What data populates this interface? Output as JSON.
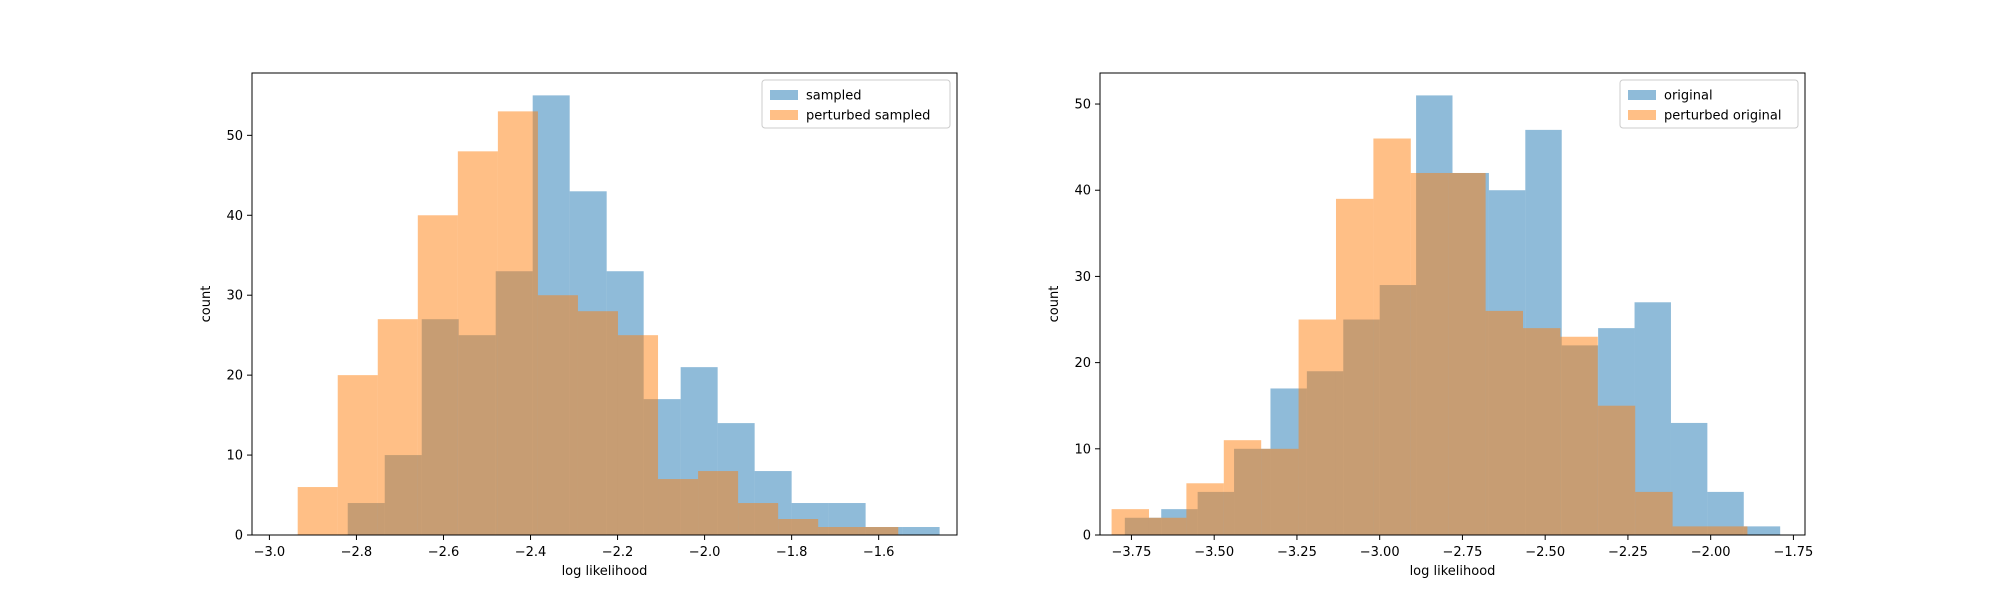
{
  "chart_data": [
    {
      "type": "bar",
      "title": "",
      "xlabel": "log likelihood",
      "ylabel": "count",
      "xlim": [
        -3.04,
        -1.42
      ],
      "ylim": [
        0,
        57.8
      ],
      "xticks": [
        -3.0,
        -2.8,
        -2.6,
        -2.4,
        -2.2,
        -2.0,
        -1.8,
        -1.6
      ],
      "xtick_labels": [
        "−3.0",
        "−2.8",
        "−2.6",
        "−2.4",
        "−2.2",
        "−2.0",
        "−1.8",
        "−1.6"
      ],
      "yticks": [
        0,
        10,
        20,
        30,
        40,
        50
      ],
      "ytick_labels": [
        "0",
        "10",
        "20",
        "30",
        "40",
        "50"
      ],
      "grid": false,
      "legend_position": "top-right",
      "series": [
        {
          "name": "sampled",
          "color": "#1f77b4",
          "opacity": 0.5,
          "bin_edges": [
            -2.82,
            -2.735,
            -2.65,
            -2.565,
            -2.48,
            -2.395,
            -2.31,
            -2.225,
            -2.14,
            -2.055,
            -1.97,
            -1.885,
            -1.8,
            -1.715,
            -1.63,
            -1.545,
            -1.46
          ],
          "values": [
            4,
            10,
            27,
            25,
            33,
            55,
            43,
            33,
            17,
            21,
            14,
            8,
            4,
            4,
            1,
            1
          ]
        },
        {
          "name": "perturbed sampled",
          "color": "#ff7f0e",
          "opacity": 0.5,
          "bin_edges": [
            -2.935,
            -2.843,
            -2.751,
            -2.659,
            -2.567,
            -2.475,
            -2.383,
            -2.291,
            -2.199,
            -2.107,
            -2.015,
            -1.923,
            -1.831,
            -1.739,
            -1.647,
            -1.555
          ],
          "values": [
            6,
            20,
            27,
            40,
            48,
            53,
            30,
            28,
            25,
            7,
            8,
            4,
            2,
            1,
            1
          ]
        }
      ]
    },
    {
      "type": "bar",
      "title": "",
      "xlabel": "log likelihood",
      "ylabel": "count",
      "xlim": [
        -3.845,
        -1.715
      ],
      "ylim": [
        0,
        53.6
      ],
      "xticks": [
        -3.75,
        -3.5,
        -3.25,
        -3.0,
        -2.75,
        -2.5,
        -2.25,
        -2.0,
        -1.75
      ],
      "xtick_labels": [
        "−3.75",
        "−3.50",
        "−3.25",
        "−3.00",
        "−2.75",
        "−2.50",
        "−2.25",
        "−2.00",
        "−1.75"
      ],
      "yticks": [
        0,
        10,
        20,
        30,
        40,
        50
      ],
      "ytick_labels": [
        "0",
        "10",
        "20",
        "30",
        "40",
        "50"
      ],
      "grid": false,
      "legend_position": "top-right",
      "series": [
        {
          "name": "original",
          "color": "#1f77b4",
          "opacity": 0.5,
          "bin_edges": [
            -3.77,
            -3.66,
            -3.55,
            -3.44,
            -3.33,
            -3.22,
            -3.11,
            -3.0,
            -2.89,
            -2.78,
            -2.67,
            -2.56,
            -2.45,
            -2.34,
            -2.23,
            -2.12,
            -2.01,
            -1.9,
            -1.79
          ],
          "values": [
            2,
            3,
            5,
            10,
            17,
            19,
            25,
            29,
            51,
            42,
            40,
            47,
            22,
            24,
            27,
            13,
            5,
            1
          ]
        },
        {
          "name": "perturbed original",
          "color": "#ff7f0e",
          "opacity": 0.5,
          "bin_edges": [
            -3.81,
            -3.697,
            -3.584,
            -3.471,
            -3.358,
            -3.245,
            -3.132,
            -3.019,
            -2.906,
            -2.793,
            -2.68,
            -2.567,
            -2.454,
            -2.341,
            -2.228,
            -2.115,
            -2.002,
            -1.889
          ],
          "values": [
            3,
            2,
            6,
            11,
            10,
            25,
            39,
            46,
            42,
            42,
            26,
            24,
            23,
            15,
            5,
            1,
            1
          ]
        }
      ]
    }
  ]
}
